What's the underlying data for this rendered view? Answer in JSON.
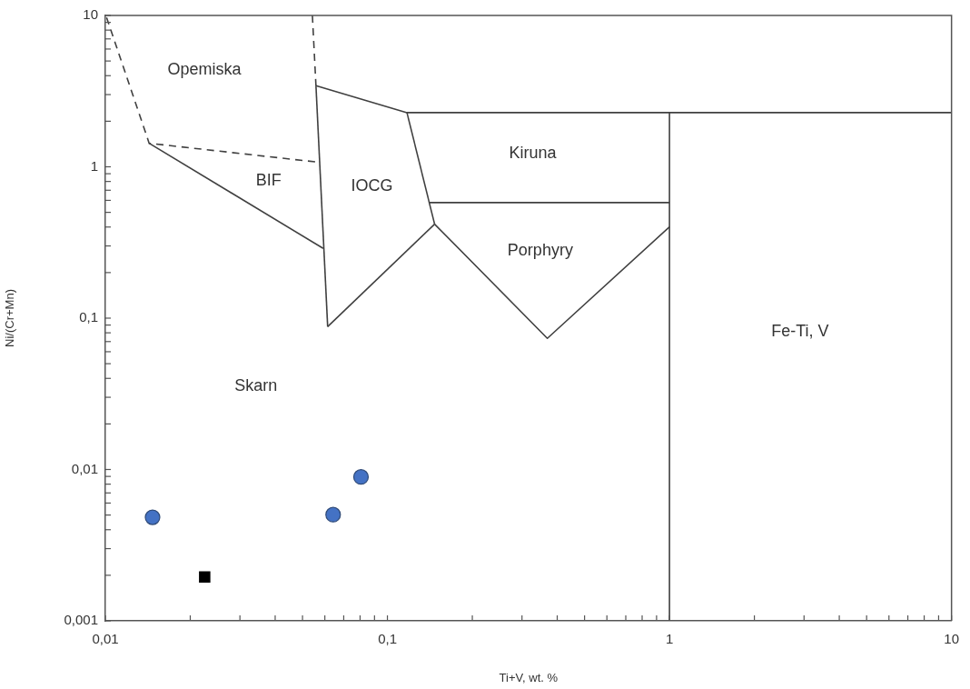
{
  "chart_data": {
    "type": "scatter",
    "xlabel": "Ti+V, wt. %",
    "ylabel": "Ni/(Cr+Mn)",
    "log": "xy",
    "xlim": [
      0.01,
      10
    ],
    "ylim": [
      0.001,
      10
    ],
    "xticks": [
      {
        "value": 0.01,
        "label": "0,01"
      },
      {
        "value": 0.02,
        "label": null
      },
      {
        "value": 0.03,
        "label": null
      },
      {
        "value": 0.04,
        "label": null
      },
      {
        "value": 0.05,
        "label": null
      },
      {
        "value": 0.06,
        "label": null
      },
      {
        "value": 0.07,
        "label": null
      },
      {
        "value": 0.08,
        "label": null
      },
      {
        "value": 0.09,
        "label": null
      },
      {
        "value": 0.1,
        "label": "0,1"
      },
      {
        "value": 0.2,
        "label": null
      },
      {
        "value": 0.3,
        "label": null
      },
      {
        "value": 0.4,
        "label": null
      },
      {
        "value": 0.5,
        "label": null
      },
      {
        "value": 0.6,
        "label": null
      },
      {
        "value": 0.7,
        "label": null
      },
      {
        "value": 0.8,
        "label": null
      },
      {
        "value": 0.9,
        "label": null
      },
      1,
      {
        "value": 2,
        "label": null
      },
      {
        "value": 3,
        "label": null
      },
      {
        "value": 4,
        "label": null
      },
      {
        "value": 5,
        "label": null
      },
      {
        "value": 6,
        "label": null
      },
      {
        "value": 7,
        "label": null
      },
      {
        "value": 8,
        "label": null
      },
      {
        "value": 9,
        "label": null
      },
      10
    ],
    "yticks": [
      {
        "value": 0.001,
        "label": "0,001"
      },
      {
        "value": 0.002,
        "label": null
      },
      {
        "value": 0.003,
        "label": null
      },
      {
        "value": 0.004,
        "label": null
      },
      {
        "value": 0.005,
        "label": null
      },
      {
        "value": 0.006,
        "label": null
      },
      {
        "value": 0.007,
        "label": null
      },
      {
        "value": 0.008,
        "label": null
      },
      {
        "value": 0.009,
        "label": null
      },
      {
        "value": 0.01,
        "label": "0,01"
      },
      {
        "value": 0.02,
        "label": null
      },
      {
        "value": 0.03,
        "label": null
      },
      {
        "value": 0.04,
        "label": null
      },
      {
        "value": 0.05,
        "label": null
      },
      {
        "value": 0.06,
        "label": null
      },
      {
        "value": 0.07,
        "label": null
      },
      {
        "value": 0.08,
        "label": null
      },
      {
        "value": 0.09,
        "label": null
      },
      {
        "value": 0.1,
        "label": "0,1"
      },
      {
        "value": 0.2,
        "label": null
      },
      {
        "value": 0.3,
        "label": null
      },
      {
        "value": 0.4,
        "label": null
      },
      {
        "value": 0.5,
        "label": null
      },
      {
        "value": 0.6,
        "label": null
      },
      {
        "value": 0.7,
        "label": null
      },
      {
        "value": 0.8,
        "label": null
      },
      {
        "value": 0.9,
        "label": null
      },
      1,
      {
        "value": 2,
        "label": null
      },
      {
        "value": 3,
        "label": null
      },
      {
        "value": 4,
        "label": null
      },
      {
        "value": 5,
        "label": null
      },
      {
        "value": 6,
        "label": null
      },
      {
        "value": 7,
        "label": null
      },
      {
        "value": 8,
        "label": null
      },
      {
        "value": 9,
        "label": null
      },
      10
    ],
    "series": [
      {
        "type": "line",
        "color": "#404040",
        "line_style": "dashed",
        "marker": "none",
        "x": [
          0.0101,
          0.0143,
          0.0575
        ],
        "values": [
          9.7,
          1.43,
          1.07
        ]
      },
      {
        "type": "line",
        "color": "#404040",
        "line_style": "dashed",
        "marker": "none",
        "x": [
          0.0542,
          0.0558
        ],
        "values": [
          10,
          3.44
        ]
      },
      {
        "type": "line",
        "color": "#404040",
        "line_style": "solid",
        "marker": "none",
        "x": [
          0.0143,
          0.0592
        ],
        "values": [
          1.43,
          0.289
        ]
      },
      {
        "type": "line",
        "color": "#404040",
        "line_style": "solid",
        "marker": "none",
        "x": [
          0.0558,
          0.0614
        ],
        "values": [
          3.44,
          0.0878
        ]
      },
      {
        "type": "line",
        "color": "#404040",
        "line_style": "solid",
        "marker": "none",
        "x": [
          0.0614,
          0.147
        ],
        "values": [
          0.0878,
          0.418
        ]
      },
      {
        "type": "line",
        "color": "#404040",
        "line_style": "solid",
        "marker": "none",
        "x": [
          0.1173,
          0.147
        ],
        "values": [
          2.28,
          0.418
        ]
      },
      {
        "type": "line",
        "color": "#404040",
        "line_style": "solid",
        "marker": "none",
        "x": [
          0.0558,
          0.1173,
          10
        ],
        "values": [
          3.44,
          2.28,
          2.28
        ]
      },
      {
        "type": "line",
        "color": "#404040",
        "line_style": "solid",
        "marker": "none",
        "x": [
          0.141,
          1
        ],
        "values": [
          0.58,
          0.58
        ]
      },
      {
        "type": "line",
        "color": "#404040",
        "line_style": "solid",
        "marker": "none",
        "x": [
          0.147,
          0.369,
          1
        ],
        "values": [
          0.418,
          0.0735,
          0.401
        ]
      },
      {
        "type": "line",
        "color": "#404040",
        "line_style": "solid",
        "marker": "none",
        "x": [
          1,
          1
        ],
        "values": [
          2.28,
          0.001
        ]
      },
      {
        "type": "scatter",
        "color": "#4472c4",
        "marker": "circle",
        "x": [
          0.0147,
          0.0642,
          0.0806
        ],
        "values": [
          0.00483,
          0.00503,
          0.00893
        ]
      },
      {
        "type": "scatter",
        "color": "#000000",
        "marker": "square",
        "x": [
          0.0225
        ],
        "values": [
          0.00195
        ]
      }
    ],
    "annotations": [
      "Opemiska",
      "BIF",
      "IOCG",
      "Kiruna",
      "Porphyry",
      "Fe-Ti, V",
      "Skarn"
    ]
  }
}
